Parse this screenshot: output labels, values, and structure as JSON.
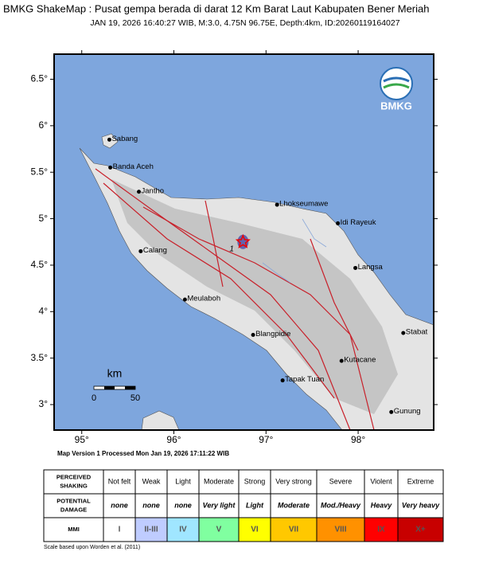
{
  "header": {
    "title": "BMKG ShakeMap : Pusat gempa berada di darat 12 Km Barat Laut Kabupaten Bener Meriah",
    "subtitle": "JAN 19, 2026 16:40:27 WIB, M:3.0, 4.75N 96.75E, Depth:4km, ID:20260119164027"
  },
  "map": {
    "lon_range": [
      94.7,
      98.82
    ],
    "lat_range": [
      2.726,
      6.77
    ],
    "lon_ticks": [
      {
        "value": 95,
        "label": "95°"
      },
      {
        "value": 96,
        "label": "96°"
      },
      {
        "value": 97,
        "label": "97°"
      },
      {
        "value": 98,
        "label": "98°"
      }
    ],
    "lat_ticks": [
      {
        "value": 3,
        "label": "3°"
      },
      {
        "value": 3.5,
        "label": "3.5°"
      },
      {
        "value": 4,
        "label": "4°"
      },
      {
        "value": 4.5,
        "label": "4.5°"
      },
      {
        "value": 5,
        "label": "5°"
      },
      {
        "value": 5.5,
        "label": "5.5°"
      },
      {
        "value": 6,
        "label": "6°"
      },
      {
        "value": 6.5,
        "label": "6.5°"
      }
    ],
    "cities": [
      {
        "name": "Sabang",
        "lat": 5.85,
        "lon": 95.3
      },
      {
        "name": "Banda Aceh",
        "lat": 5.55,
        "lon": 95.31
      },
      {
        "name": "Jantho",
        "lat": 5.29,
        "lon": 95.62
      },
      {
        "name": "Lhokseumawe",
        "lat": 5.15,
        "lon": 97.12
      },
      {
        "name": "Idi Rayeuk",
        "lat": 4.95,
        "lon": 97.78
      },
      {
        "name": "Calang",
        "lat": 4.65,
        "lon": 95.64
      },
      {
        "name": "Langsa",
        "lat": 4.47,
        "lon": 97.97
      },
      {
        "name": "Meulaboh",
        "lat": 4.13,
        "lon": 96.12
      },
      {
        "name": "Blangpidie",
        "lat": 3.75,
        "lon": 96.86
      },
      {
        "name": "Stabat",
        "lat": 3.77,
        "lon": 98.49
      },
      {
        "name": "Kutacane",
        "lat": 3.47,
        "lon": 97.82
      },
      {
        "name": "Tapak Tuan",
        "lat": 3.26,
        "lon": 97.18
      },
      {
        "name": "Gunung",
        "lat": 2.92,
        "lon": 98.36
      }
    ],
    "epicenter": {
      "lat": 4.75,
      "lon": 96.75,
      "label": "1"
    },
    "scale": {
      "unit": "km",
      "labels": [
        "0",
        "50"
      ]
    },
    "logo": "BMKG"
  },
  "version_note": "Map Version 1 Processed Mon Jan 19, 2026 17:11:22 WIB",
  "legend": {
    "rows": [
      {
        "header": "PERCEIVED SHAKING",
        "cells": [
          "Not felt",
          "Weak",
          "Light",
          "Moderate",
          "Strong",
          "Very strong",
          "Severe",
          "Violent",
          "Extreme"
        ]
      },
      {
        "header": "POTENTIAL DAMAGE",
        "cells": [
          "none",
          "none",
          "none",
          "Very light",
          "Light",
          "Moderate",
          "Mod./Heavy",
          "Heavy",
          "Very heavy"
        ]
      },
      {
        "header": "MMI",
        "cells": [
          "I",
          "II-III",
          "IV",
          "V",
          "VI",
          "VII",
          "VIII",
          "IX",
          "X+"
        ]
      }
    ],
    "colors": [
      "#ffffff",
      "#bfccff",
      "#a0e6ff",
      "#80ffa0",
      "#ffff00",
      "#ffc800",
      "#ff9100",
      "#ff0000",
      "#c80000"
    ]
  },
  "footnote": "Scale based upon Worden et al. (2011)"
}
